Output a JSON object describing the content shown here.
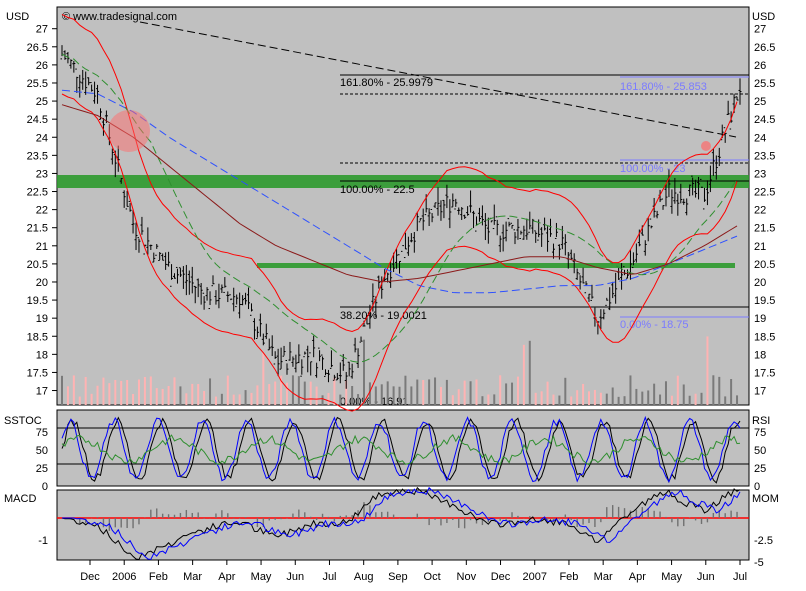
{
  "header": {
    "currency_left": "USD",
    "currency_right": "USD",
    "watermark": "© www.tradesignal.com"
  },
  "panels": {
    "sstoc_label": "SSTOC",
    "rsi_label": "RSI",
    "macd_label": "MACD",
    "mom_label": "MOM"
  },
  "fib_labels": {
    "main_1618": "161.80% - 25.9979",
    "main_1000": "100.00% - 22.5",
    "main_382": "38.20% - 19.0021",
    "main_000": "0.00% - 16.91",
    "blue_1618": "161.80% - 25.853",
    "blue_1000": "100.00% - 23",
    "blue_000": "0.00% - 18.75"
  },
  "colors": {
    "price_bg": "#c0c0c0",
    "band": "#ff0000",
    "ma_blue": "#2d50ff",
    "ma_green": "#2f8f2f",
    "ma_brown": "#8b1a1a",
    "green_zone": "#2e9a2e",
    "fib_blue": "#7b7bff"
  },
  "chart_data": [
    {
      "type": "line",
      "subtype": "candlestick price chart",
      "y_unit": "USD",
      "x_tick_labels": [
        "Dec",
        "2006",
        "Feb",
        "Mar",
        "Apr",
        "May",
        "Jun",
        "Jul",
        "Aug",
        "Sep",
        "Oct",
        "Nov",
        "Dec",
        "2007",
        "Feb",
        "Mar",
        "Apr",
        "May",
        "Jun",
        "Jul"
      ],
      "y_tick_labels": [
        "27",
        "26.5",
        "26",
        "25.5",
        "25",
        "24.5",
        "24",
        "23.5",
        "23",
        "22.5",
        "22",
        "21.5",
        "21",
        "20.5",
        "20",
        "19.5",
        "19",
        "18.5",
        "18",
        "17.5",
        "17"
      ],
      "ylim": [
        16.6,
        27.6
      ],
      "grid": false,
      "close_series": {
        "x": [
          "Dec",
          "2006",
          "Feb",
          "Mar",
          "Apr",
          "May",
          "Jun",
          "Jul",
          "Aug",
          "Sep",
          "Oct",
          "Nov",
          "Dec",
          "2007",
          "Feb",
          "Mar",
          "Apr",
          "May",
          "Jun",
          "Jul"
        ],
        "values": [
          26.3,
          25.2,
          21.6,
          20.4,
          19.7,
          19.6,
          17.8,
          18.0,
          17.4,
          20.1,
          21.6,
          22.3,
          21.4,
          21.5,
          21.1,
          19.0,
          20.6,
          22.5,
          22.4,
          25.4
        ]
      },
      "moving_average_blue": [
        25.3,
        25.2,
        24.7,
        24.0,
        23.4,
        22.8,
        22.2,
        21.6,
        21.0,
        20.4,
        19.9,
        19.7,
        19.7,
        19.8,
        19.9,
        19.9,
        20.1,
        20.5,
        20.9,
        21.3
      ],
      "moving_average_brown": [
        24.9,
        24.6,
        24.0,
        23.2,
        22.4,
        21.6,
        21.0,
        20.6,
        20.2,
        20.0,
        20.1,
        20.3,
        20.5,
        20.7,
        20.7,
        20.4,
        20.2,
        20.5,
        21.0,
        21.6
      ],
      "fibonacci_levels": [
        {
          "label": "161.80% - 25.9979",
          "value": 25.9979
        },
        {
          "label": "100.00% - 22.5",
          "value": 22.5
        },
        {
          "label": "38.20% - 19.0021",
          "value": 19.0021
        },
        {
          "label": "0.00% - 16.91",
          "value": 16.91
        },
        {
          "label": "161.80% - 25.853",
          "value": 25.853
        },
        {
          "label": "100.00% - 23",
          "value": 23
        },
        {
          "label": "0.00% - 18.75",
          "value": 18.75
        }
      ],
      "support_zones": [
        22.5,
        20.1
      ]
    },
    {
      "type": "line",
      "subtype": "oscillator",
      "left_label": "SSTOC",
      "right_label": "RSI",
      "y_tick_labels": [
        "75",
        "50",
        "25",
        "0"
      ],
      "levels": [
        80,
        20
      ],
      "ylim": [
        0,
        100
      ]
    },
    {
      "type": "bar",
      "subtype": "MACD / momentum histogram",
      "left_label": "MACD",
      "right_label": "MOM",
      "left_tick_labels": [
        "-1"
      ],
      "right_tick_labels": [
        "-2.5",
        "-5"
      ]
    }
  ]
}
